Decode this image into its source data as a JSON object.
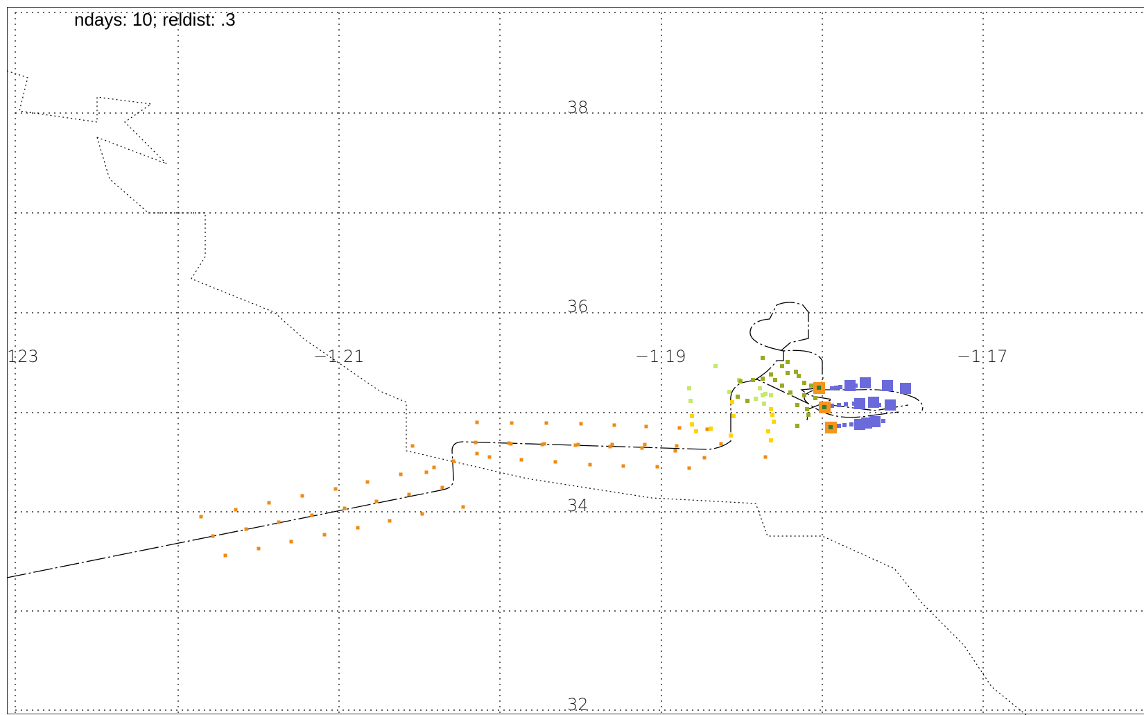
{
  "title": "ndays: 10; reldist: .3",
  "lon_labels": [
    "123",
    "−1 21",
    "−1 19",
    "−1 17"
  ],
  "lat_labels": [
    "38",
    "36",
    "34",
    "32"
  ],
  "colors": {
    "grid": "#000000",
    "coastline": "#000000",
    "trajectory": "#000000",
    "far_particles": "#f08a10",
    "mid_particles": "#ffd400",
    "near_particles": "#9acd32",
    "recent_particles": "#6a6adb",
    "release_points": "#f7941d"
  },
  "icons": {
    "release_marker": "orange-square-with-green-center",
    "particle": "filled-square"
  }
}
